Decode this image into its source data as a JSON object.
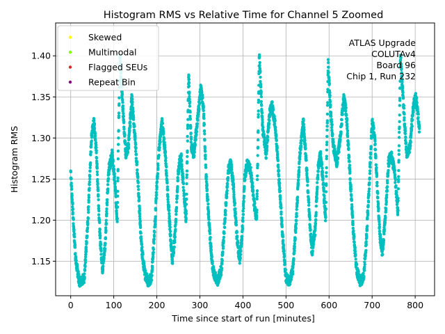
{
  "chart_data": {
    "type": "scatter",
    "title": "Histogram RMS vs Relative Time for Channel 5 Zoomed",
    "xlabel": "Time since start of run [minutes]",
    "ylabel": "Histogram RMS",
    "xlim": [
      -35,
      845
    ],
    "ylim": [
      1.108,
      1.44
    ],
    "xticks": [
      0,
      100,
      200,
      300,
      400,
      500,
      600,
      700,
      800
    ],
    "yticks": [
      1.15,
      1.2,
      1.25,
      1.3,
      1.35,
      1.4
    ],
    "ytick_labels": [
      "1.15",
      "1.20",
      "1.25",
      "1.30",
      "1.35",
      "1.40"
    ],
    "grid": true,
    "legend_position": "top-left",
    "legend": [
      {
        "label": "Skewed",
        "color": "#ffff00"
      },
      {
        "label": "Multimodal",
        "color": "#7fff00"
      },
      {
        "label": "Flagged SEUs",
        "color": "#d62728"
      },
      {
        "label": "Repeat Bin",
        "color": "#800080"
      }
    ],
    "annotation_lines": [
      "ATLAS Upgrade",
      "COLUTAv4",
      "Board 96",
      "Chip 1, Run 232"
    ],
    "series": [
      {
        "color": "#00bfbf",
        "x_range": [
          0,
          810
        ],
        "keypoints": [
          [
            0,
            1.26
          ],
          [
            6,
            1.2
          ],
          [
            12,
            1.15
          ],
          [
            20,
            1.125
          ],
          [
            32,
            1.13
          ],
          [
            40,
            1.2
          ],
          [
            48,
            1.3
          ],
          [
            54,
            1.32
          ],
          [
            60,
            1.28
          ],
          [
            68,
            1.18
          ],
          [
            74,
            1.14
          ],
          [
            80,
            1.17
          ],
          [
            88,
            1.26
          ],
          [
            96,
            1.28
          ],
          [
            102,
            1.25
          ],
          [
            108,
            1.2
          ],
          [
            114,
            1.4
          ],
          [
            122,
            1.33
          ],
          [
            128,
            1.28
          ],
          [
            134,
            1.29
          ],
          [
            142,
            1.35
          ],
          [
            148,
            1.31
          ],
          [
            156,
            1.25
          ],
          [
            164,
            1.17
          ],
          [
            172,
            1.135
          ],
          [
            180,
            1.125
          ],
          [
            188,
            1.13
          ],
          [
            196,
            1.2
          ],
          [
            204,
            1.28
          ],
          [
            212,
            1.32
          ],
          [
            220,
            1.28
          ],
          [
            228,
            1.21
          ],
          [
            236,
            1.15
          ],
          [
            242,
            1.18
          ],
          [
            250,
            1.26
          ],
          [
            256,
            1.28
          ],
          [
            262,
            1.24
          ],
          [
            268,
            1.2
          ],
          [
            274,
            1.38
          ],
          [
            280,
            1.29
          ],
          [
            286,
            1.28
          ],
          [
            294,
            1.32
          ],
          [
            302,
            1.36
          ],
          [
            308,
            1.34
          ],
          [
            314,
            1.26
          ],
          [
            322,
            1.19
          ],
          [
            330,
            1.14
          ],
          [
            340,
            1.125
          ],
          [
            350,
            1.14
          ],
          [
            358,
            1.2
          ],
          [
            366,
            1.26
          ],
          [
            372,
            1.27
          ],
          [
            378,
            1.24
          ],
          [
            386,
            1.18
          ],
          [
            392,
            1.15
          ],
          [
            398,
            1.18
          ],
          [
            404,
            1.25
          ],
          [
            410,
            1.27
          ],
          [
            418,
            1.26
          ],
          [
            426,
            1.22
          ],
          [
            432,
            1.2
          ],
          [
            438,
            1.4
          ],
          [
            446,
            1.31
          ],
          [
            454,
            1.28
          ],
          [
            462,
            1.33
          ],
          [
            468,
            1.34
          ],
          [
            476,
            1.31
          ],
          [
            484,
            1.25
          ],
          [
            492,
            1.18
          ],
          [
            500,
            1.13
          ],
          [
            508,
            1.125
          ],
          [
            516,
            1.14
          ],
          [
            524,
            1.2
          ],
          [
            532,
            1.28
          ],
          [
            540,
            1.32
          ],
          [
            546,
            1.28
          ],
          [
            554,
            1.21
          ],
          [
            560,
            1.16
          ],
          [
            568,
            1.19
          ],
          [
            574,
            1.26
          ],
          [
            580,
            1.28
          ],
          [
            586,
            1.25
          ],
          [
            592,
            1.2
          ],
          [
            598,
            1.39
          ],
          [
            604,
            1.33
          ],
          [
            610,
            1.29
          ],
          [
            618,
            1.27
          ],
          [
            626,
            1.3
          ],
          [
            634,
            1.35
          ],
          [
            640,
            1.33
          ],
          [
            648,
            1.26
          ],
          [
            656,
            1.19
          ],
          [
            664,
            1.14
          ],
          [
            672,
            1.125
          ],
          [
            680,
            1.13
          ],
          [
            686,
            1.17
          ],
          [
            694,
            1.25
          ],
          [
            700,
            1.32
          ],
          [
            706,
            1.3
          ],
          [
            712,
            1.24
          ],
          [
            718,
            1.18
          ],
          [
            724,
            1.16
          ],
          [
            730,
            1.2
          ],
          [
            738,
            1.27
          ],
          [
            744,
            1.28
          ],
          [
            752,
            1.26
          ],
          [
            760,
            1.21
          ],
          [
            766,
            1.4
          ],
          [
            774,
            1.33
          ],
          [
            780,
            1.28
          ],
          [
            788,
            1.29
          ],
          [
            796,
            1.34
          ],
          [
            802,
            1.35
          ],
          [
            810,
            1.31
          ]
        ]
      }
    ]
  }
}
